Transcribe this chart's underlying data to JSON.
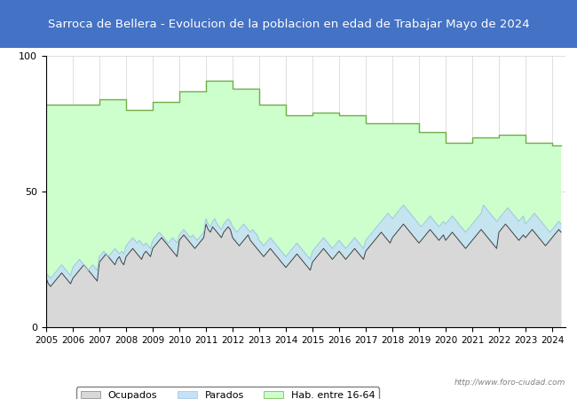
{
  "title": "Sarroca de Bellera - Evolucion de la poblacion en edad de Trabajar Mayo de 2024",
  "title_bg_color": "#4472c4",
  "title_text_color": "white",
  "xlabel": "",
  "ylabel": "",
  "ylim": [
    0,
    100
  ],
  "yticks": [
    0,
    50,
    100
  ],
  "year_start": 2005,
  "year_end": 2024,
  "watermark": "http://www.foro-ciudad.com",
  "legend_labels": [
    "Ocupados",
    "Parados",
    "Hab. entre 16-64"
  ],
  "ocupados_color": "#d8d8d8",
  "parados_color": "#c6e0f5",
  "hab_color": "#ccffcc",
  "hab_line_color": "#70ad47",
  "ocupados_line_color": "#404040",
  "parados_line_color": "#9dc3e6",
  "hab_data": [
    82,
    82,
    82,
    82,
    82,
    82,
    82,
    82,
    82,
    82,
    82,
    82,
    82,
    82,
    82,
    82,
    82,
    82,
    82,
    82,
    82,
    82,
    82,
    82,
    84,
    84,
    84,
    84,
    84,
    84,
    84,
    84,
    84,
    84,
    84,
    84,
    80,
    80,
    80,
    80,
    80,
    80,
    80,
    80,
    80,
    80,
    80,
    80,
    83,
    83,
    83,
    83,
    83,
    83,
    83,
    83,
    83,
    83,
    83,
    83,
    87,
    87,
    87,
    87,
    87,
    87,
    87,
    87,
    87,
    87,
    87,
    87,
    91,
    91,
    91,
    91,
    91,
    91,
    91,
    91,
    91,
    91,
    91,
    91,
    88,
    88,
    88,
    88,
    88,
    88,
    88,
    88,
    88,
    88,
    88,
    88,
    82,
    82,
    82,
    82,
    82,
    82,
    82,
    82,
    82,
    82,
    82,
    82,
    78,
    78,
    78,
    78,
    78,
    78,
    78,
    78,
    78,
    78,
    78,
    78,
    79,
    79,
    79,
    79,
    79,
    79,
    79,
    79,
    79,
    79,
    79,
    79,
    78,
    78,
    78,
    78,
    78,
    78,
    78,
    78,
    78,
    78,
    78,
    78,
    75,
    75,
    75,
    75,
    75,
    75,
    75,
    75,
    75,
    75,
    75,
    75,
    75,
    75,
    75,
    75,
    75,
    75,
    75,
    75,
    75,
    75,
    75,
    75,
    72,
    72,
    72,
    72,
    72,
    72,
    72,
    72,
    72,
    72,
    72,
    72,
    68,
    68,
    68,
    68,
    68,
    68,
    68,
    68,
    68,
    68,
    68,
    68,
    70,
    70,
    70,
    70,
    70,
    70,
    70,
    70,
    70,
    70,
    70,
    70,
    71,
    71,
    71,
    71,
    71,
    71,
    71,
    71,
    71,
    71,
    71,
    71,
    68,
    68,
    68,
    68,
    68,
    68,
    68,
    68,
    68,
    68,
    68,
    68,
    67,
    67,
    67,
    67,
    67
  ],
  "ocupados_data": [
    18,
    16,
    15,
    16,
    17,
    18,
    19,
    20,
    19,
    18,
    17,
    16,
    18,
    19,
    20,
    21,
    22,
    23,
    22,
    21,
    20,
    19,
    18,
    17,
    24,
    25,
    26,
    27,
    26,
    25,
    24,
    23,
    25,
    26,
    24,
    23,
    26,
    27,
    28,
    29,
    28,
    27,
    26,
    25,
    27,
    28,
    27,
    26,
    29,
    30,
    31,
    32,
    33,
    32,
    31,
    30,
    29,
    28,
    27,
    26,
    32,
    33,
    34,
    33,
    32,
    31,
    30,
    29,
    30,
    31,
    32,
    33,
    38,
    36,
    35,
    37,
    36,
    35,
    34,
    33,
    35,
    36,
    37,
    36,
    33,
    32,
    31,
    30,
    31,
    32,
    33,
    34,
    32,
    31,
    30,
    29,
    28,
    27,
    26,
    27,
    28,
    29,
    28,
    27,
    26,
    25,
    24,
    23,
    22,
    23,
    24,
    25,
    26,
    27,
    26,
    25,
    24,
    23,
    22,
    21,
    24,
    25,
    26,
    27,
    28,
    29,
    28,
    27,
    26,
    25,
    26,
    27,
    28,
    27,
    26,
    25,
    26,
    27,
    28,
    29,
    28,
    27,
    26,
    25,
    28,
    29,
    30,
    31,
    32,
    33,
    34,
    35,
    34,
    33,
    32,
    31,
    33,
    34,
    35,
    36,
    37,
    38,
    37,
    36,
    35,
    34,
    33,
    32,
    31,
    32,
    33,
    34,
    35,
    36,
    35,
    34,
    33,
    32,
    33,
    34,
    32,
    33,
    34,
    35,
    34,
    33,
    32,
    31,
    30,
    29,
    30,
    31,
    32,
    33,
    34,
    35,
    36,
    35,
    34,
    33,
    32,
    31,
    30,
    29,
    35,
    36,
    37,
    38,
    37,
    36,
    35,
    34,
    33,
    32,
    33,
    34,
    33,
    34,
    35,
    36,
    35,
    34,
    33,
    32,
    31,
    30,
    31,
    32,
    33,
    34,
    35,
    36,
    35
  ],
  "parados_data": [
    20,
    19,
    18,
    19,
    20,
    21,
    22,
    23,
    22,
    21,
    20,
    19,
    22,
    23,
    24,
    25,
    24,
    23,
    22,
    21,
    22,
    23,
    22,
    21,
    26,
    27,
    28,
    27,
    26,
    27,
    28,
    29,
    28,
    27,
    28,
    27,
    30,
    31,
    32,
    33,
    32,
    31,
    32,
    31,
    30,
    31,
    30,
    29,
    32,
    33,
    34,
    35,
    34,
    33,
    32,
    31,
    32,
    33,
    32,
    31,
    34,
    35,
    36,
    35,
    34,
    33,
    34,
    33,
    32,
    33,
    34,
    35,
    40,
    38,
    37,
    39,
    40,
    38,
    37,
    36,
    38,
    39,
    40,
    39,
    37,
    36,
    35,
    36,
    37,
    38,
    37,
    36,
    35,
    36,
    35,
    34,
    32,
    31,
    30,
    31,
    32,
    33,
    32,
    31,
    30,
    29,
    28,
    27,
    26,
    27,
    28,
    29,
    30,
    31,
    30,
    29,
    28,
    27,
    26,
    25,
    28,
    29,
    30,
    31,
    32,
    33,
    32,
    31,
    30,
    29,
    30,
    31,
    32,
    31,
    30,
    29,
    30,
    31,
    32,
    33,
    32,
    31,
    30,
    29,
    32,
    33,
    34,
    35,
    36,
    37,
    38,
    39,
    40,
    41,
    42,
    41,
    40,
    41,
    42,
    43,
    44,
    45,
    44,
    43,
    42,
    41,
    40,
    39,
    38,
    37,
    38,
    39,
    40,
    41,
    40,
    39,
    38,
    37,
    38,
    39,
    38,
    39,
    40,
    41,
    40,
    39,
    38,
    37,
    36,
    35,
    36,
    37,
    38,
    39,
    40,
    41,
    42,
    45,
    44,
    43,
    42,
    41,
    40,
    39,
    40,
    41,
    42,
    43,
    44,
    43,
    42,
    41,
    40,
    39,
    40,
    41,
    38,
    39,
    40,
    41,
    42,
    41,
    40,
    39,
    38,
    37,
    36,
    35,
    36,
    37,
    38,
    39,
    38
  ]
}
